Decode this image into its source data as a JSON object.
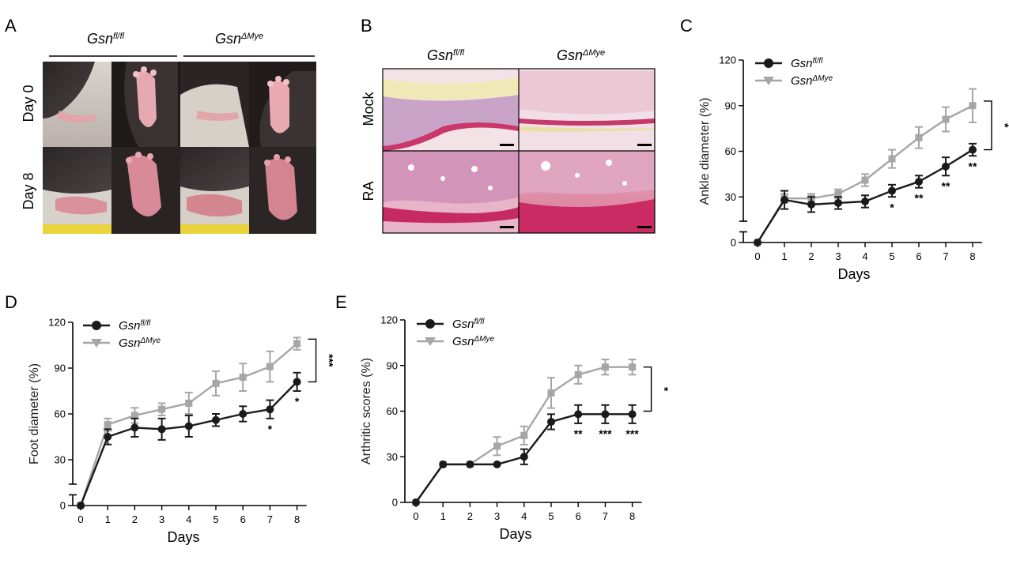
{
  "panels": {
    "A": {
      "letter": "A",
      "col_headers": [
        "Gsnfl/fl",
        "GsnΔMye"
      ],
      "col_header_base": [
        "Gsn",
        "Gsn"
      ],
      "col_header_sup": [
        "fl/fl",
        "ΔMye"
      ],
      "row_labels": [
        "Day 0",
        "Day 8"
      ]
    },
    "B": {
      "letter": "B",
      "col_header_base": [
        "Gsn",
        "Gsn"
      ],
      "col_header_sup": [
        "fl/fl",
        "ΔMye"
      ],
      "row_labels": [
        "Mock",
        "RA"
      ]
    },
    "C": {
      "letter": "C"
    },
    "D": {
      "letter": "D"
    },
    "E": {
      "letter": "E"
    }
  },
  "legend": {
    "base": "Gsn",
    "series_sup": [
      "fl/fl",
      "ΔMye"
    ]
  },
  "colors": {
    "wt": "#1a1a1a",
    "ko": "#a6a6a6"
  },
  "chart_data": [
    {
      "id": "C",
      "type": "line",
      "xlabel": "Days",
      "ylabel": "Ankle diameter (%)",
      "x": [
        0,
        1,
        2,
        3,
        4,
        5,
        6,
        7,
        8
      ],
      "yticks": [
        0,
        30,
        60,
        90,
        120
      ],
      "ylim": [
        0,
        120
      ],
      "axis_break": true,
      "series": [
        {
          "name": "Gsnfl/fl",
          "values": [
            0,
            28,
            25,
            26,
            27,
            34,
            40,
            50,
            61
          ],
          "err": [
            0,
            6,
            5,
            4,
            4,
            4,
            4,
            6,
            4
          ]
        },
        {
          "name": "GsnΔMye",
          "values": [
            0,
            29,
            29,
            32,
            41,
            55,
            69,
            81,
            90
          ],
          "err": [
            0,
            3,
            3,
            3,
            4,
            6,
            7,
            8,
            11
          ]
        }
      ],
      "point_sig": [
        {
          "x": 5,
          "label": "*"
        },
        {
          "x": 6,
          "label": "**"
        },
        {
          "x": 7,
          "label": "**"
        },
        {
          "x": 8,
          "label": "**"
        }
      ],
      "bracket": {
        "from": 61,
        "to": 93,
        "label": "*"
      }
    },
    {
      "id": "D",
      "type": "line",
      "xlabel": "Days",
      "ylabel": "Foot diameter (%)",
      "x": [
        0,
        1,
        2,
        3,
        4,
        5,
        6,
        7,
        8
      ],
      "yticks": [
        0,
        30,
        60,
        90,
        120
      ],
      "ylim": [
        0,
        120
      ],
      "axis_break": true,
      "series": [
        {
          "name": "Gsnfl/fl",
          "values": [
            0,
            45,
            51,
            50,
            52,
            56,
            60,
            63,
            81
          ],
          "err": [
            0,
            5,
            6,
            7,
            7,
            4,
            5,
            6,
            6
          ]
        },
        {
          "name": "GsnΔMye",
          "values": [
            0,
            53,
            59,
            63,
            67,
            80,
            84,
            91,
            106
          ],
          "err": [
            0,
            4,
            5,
            4,
            7,
            8,
            9,
            10,
            4
          ]
        }
      ],
      "point_sig": [
        {
          "x": 7,
          "label": "*"
        },
        {
          "x": 8,
          "label": "*"
        }
      ],
      "bracket": {
        "from": 81,
        "to": 109,
        "label": "***"
      }
    },
    {
      "id": "E",
      "type": "line",
      "xlabel": "Days",
      "ylabel": "Arthritic scores (%)",
      "x": [
        0,
        1,
        2,
        3,
        4,
        5,
        6,
        7,
        8
      ],
      "yticks": [
        0,
        30,
        60,
        90,
        120
      ],
      "ylim": [
        0,
        120
      ],
      "axis_break": false,
      "series": [
        {
          "name": "Gsnfl/fl",
          "values": [
            0,
            25,
            25,
            25,
            30,
            53,
            58,
            58,
            58
          ],
          "err": [
            0,
            0,
            0,
            0,
            5,
            5,
            6,
            6,
            6
          ]
        },
        {
          "name": "GsnΔMye",
          "values": [
            0,
            25,
            25,
            37,
            44,
            72,
            84,
            89,
            89
          ],
          "err": [
            0,
            0,
            0,
            6,
            6,
            10,
            6,
            5,
            5
          ]
        }
      ],
      "point_sig": [
        {
          "x": 6,
          "label": "**"
        },
        {
          "x": 7,
          "label": "***"
        },
        {
          "x": 8,
          "label": "***"
        }
      ],
      "bracket": {
        "from": 60,
        "to": 89,
        "label": "*"
      }
    }
  ]
}
